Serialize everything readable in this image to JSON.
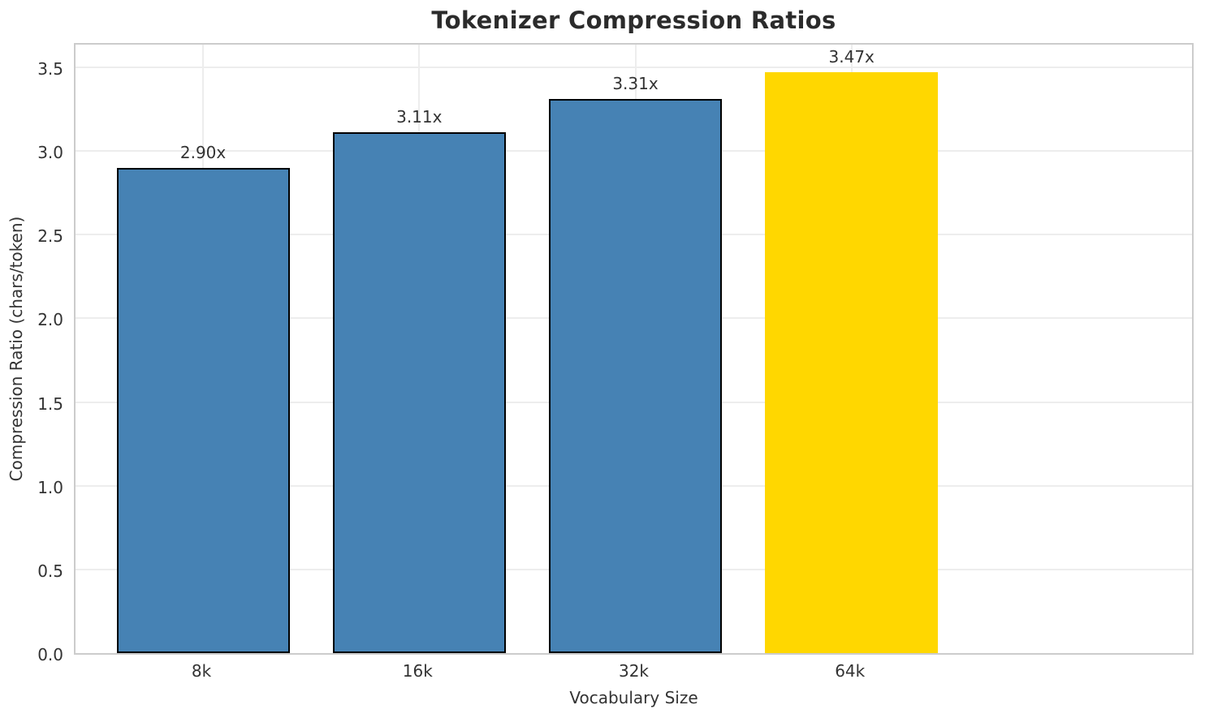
{
  "chart_data": {
    "type": "bar",
    "title": "Tokenizer Compression Ratios",
    "xlabel": "Vocabulary Size",
    "ylabel": "Compression Ratio (chars/token)",
    "categories": [
      "8k",
      "16k",
      "32k",
      "64k"
    ],
    "values": [
      2.9,
      3.11,
      3.31,
      3.47
    ],
    "bar_labels": [
      "2.90x",
      "3.11x",
      "3.31x",
      "3.47x"
    ],
    "bar_colors": [
      "#4682b4",
      "#4682b4",
      "#4682b4",
      "#ffd700"
    ],
    "bar_edge_colors": [
      "#000000",
      "#000000",
      "#000000",
      "none"
    ],
    "ylim": [
      0,
      3.655
    ],
    "yticks": [
      0.0,
      0.5,
      1.0,
      1.5,
      2.0,
      2.5,
      3.0,
      3.5
    ],
    "ytick_labels": [
      "0.0",
      "0.5",
      "1.0",
      "1.5",
      "2.0",
      "2.5",
      "3.0",
      "3.5"
    ],
    "grid": true,
    "legend": "none",
    "colors": {
      "series": "#4682b4",
      "highlight": "#ffd700",
      "bar_edge": "#000000",
      "grid": "#ededed",
      "spine": "#cccccc",
      "title_text": "#2b2b2b",
      "tick_text": "#333333"
    }
  }
}
